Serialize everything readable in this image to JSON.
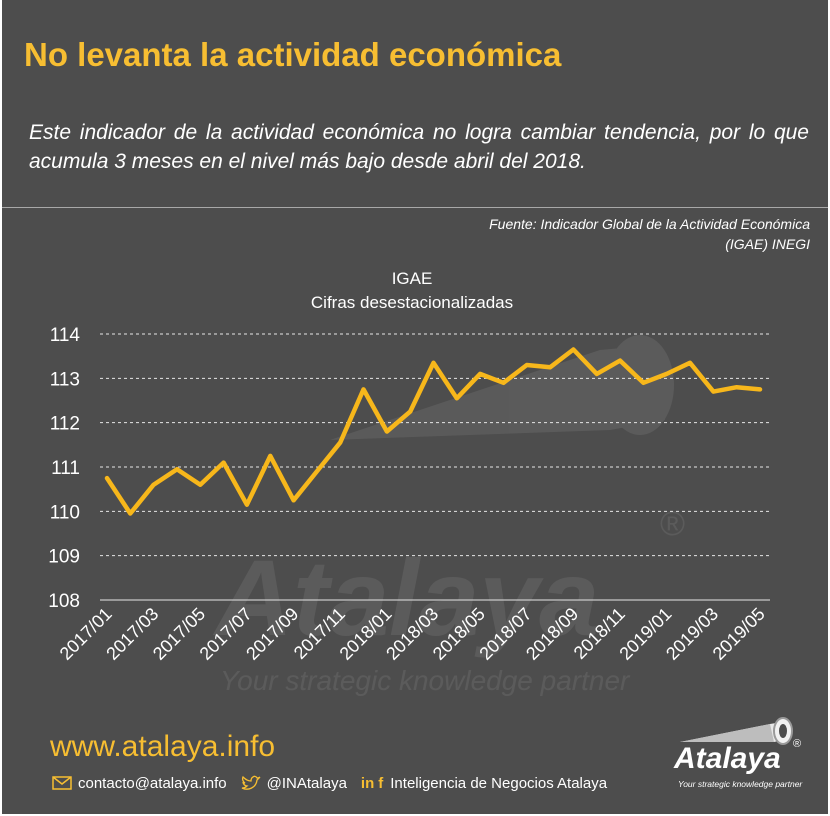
{
  "header": {
    "title": "No levanta la actividad económica",
    "subtitle": "Este indicador de la actividad económica no logra cambiar tendencia, por lo que acumula 3 meses en el nivel más bajo desde abril del 2018.",
    "source": "Fuente: Indicador Global de la Actividad Económica (IGAE) INEGI"
  },
  "chart_data": {
    "type": "line",
    "title": "IGAE",
    "subtitle": "Cifras desestacionalizadas",
    "x": [
      "2017/01",
      "2017/02",
      "2017/03",
      "2017/04",
      "2017/05",
      "2017/06",
      "2017/07",
      "2017/08",
      "2017/09",
      "2017/10",
      "2017/11",
      "2017/12",
      "2018/01",
      "2018/02",
      "2018/03",
      "2018/04",
      "2018/05",
      "2018/06",
      "2018/07",
      "2018/08",
      "2018/09",
      "2018/10",
      "2018/11",
      "2018/12",
      "2019/01",
      "2019/02",
      "2019/03",
      "2019/04",
      "2019/05"
    ],
    "x_tick_labels": [
      "2017/01",
      "2017/03",
      "2017/05",
      "2017/07",
      "2017/09",
      "2017/11",
      "2018/01",
      "2018/03",
      "2018/05",
      "2018/07",
      "2018/09",
      "2018/11",
      "2019/01",
      "2019/03",
      "2019/05"
    ],
    "series": [
      {
        "values": [
          110.75,
          109.95,
          110.6,
          110.95,
          110.6,
          111.1,
          110.15,
          111.25,
          110.25,
          110.9,
          111.55,
          112.75,
          111.8,
          112.25,
          113.35,
          112.55,
          113.1,
          112.9,
          113.3,
          113.25,
          113.65,
          113.1,
          113.4,
          112.9,
          113.1,
          113.35,
          112.7,
          112.8,
          112.75
        ]
      }
    ],
    "y_ticks": [
      108,
      109,
      110,
      111,
      112,
      113,
      114
    ],
    "ylim": [
      108,
      114
    ],
    "grid": true,
    "line_color": "#f7b71b",
    "grid_color": "#e6e6e6"
  },
  "footer": {
    "website": "www.atalaya.info",
    "email": "contacto@atalaya.info",
    "twitter": "@INAtalaya",
    "social_in": "in",
    "social_f": "f",
    "company": "Inteligencia de Negocios Atalaya",
    "brand_name": "Atalaya",
    "brand_reg": "®",
    "brand_tagline": "Your strategic knowledge partner"
  },
  "colors": {
    "background": "#4d4d4d",
    "accent": "#f7be32",
    "text": "#ffffff"
  }
}
